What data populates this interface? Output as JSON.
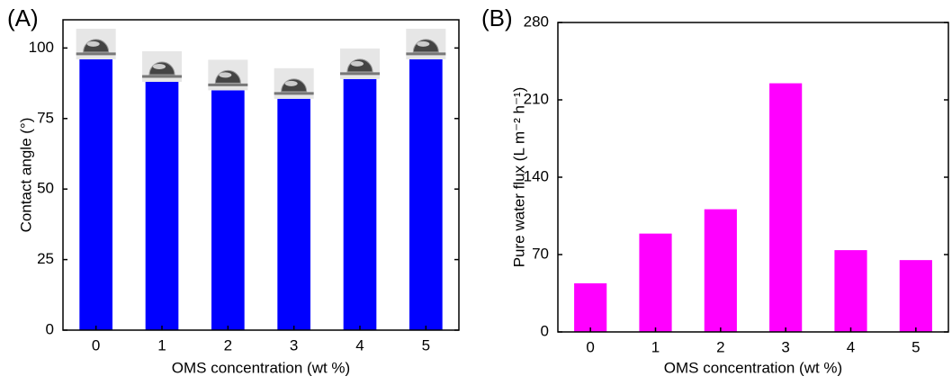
{
  "chart_data": [
    {
      "type": "bar",
      "panel_label": "(A)",
      "xlabel": "OMS concentration (wt %)",
      "ylabel": "Contact angle (°)",
      "categories": [
        "0",
        "1",
        "2",
        "3",
        "4",
        "5"
      ],
      "values": [
        96,
        88,
        85,
        82,
        89,
        96
      ],
      "color": "#0000ff",
      "ylim": [
        0,
        110
      ],
      "yticks": [
        0,
        25,
        50,
        75,
        100
      ]
    },
    {
      "type": "bar",
      "panel_label": "(B)",
      "xlabel": "OMS concentration (wt %)",
      "ylabel": "Pure water flux (L m⁻² h⁻¹)",
      "categories": [
        "0",
        "1",
        "2",
        "3",
        "4",
        "5"
      ],
      "values": [
        44,
        89,
        111,
        225,
        74,
        65
      ],
      "color": "#ff00ff",
      "ylim": [
        0,
        280
      ],
      "yticks": [
        0,
        70,
        140,
        210,
        280
      ]
    }
  ]
}
